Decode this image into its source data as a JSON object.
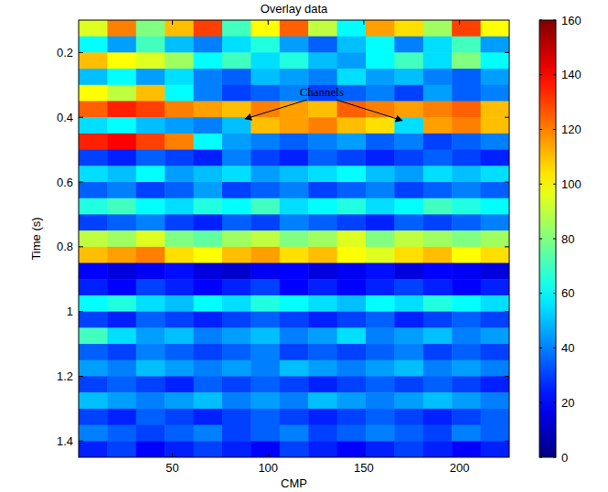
{
  "chart_data": {
    "type": "heatmap",
    "title": "Overlay data",
    "xlabel": "CMP",
    "ylabel": "Time (s)",
    "xlim": [
      1,
      226
    ],
    "ylim": [
      0.1,
      1.45
    ],
    "xticks": [
      50,
      100,
      150,
      200
    ],
    "yticks": [
      0.2,
      0.4,
      0.6,
      0.8,
      1,
      1.2,
      1.4
    ],
    "grid": false,
    "x": [
      1,
      16,
      31,
      46,
      61,
      76,
      91,
      106,
      121,
      136,
      151,
      166,
      181,
      196,
      211,
      226
    ],
    "y": [
      0.1,
      0.15,
      0.2,
      0.25,
      0.3,
      0.35,
      0.4,
      0.45,
      0.5,
      0.55,
      0.6,
      0.65,
      0.7,
      0.75,
      0.8,
      0.85,
      0.9,
      0.95,
      1,
      1.05,
      1.1,
      1.15,
      1.2,
      1.25,
      1.3,
      1.35,
      1.4,
      1.45
    ],
    "values": [
      [
        95,
        120,
        80,
        110,
        130,
        70,
        100,
        125,
        90,
        60,
        115,
        105,
        85,
        130,
        100
      ],
      [
        60,
        45,
        70,
        50,
        40,
        55,
        65,
        45,
        35,
        50,
        60,
        40,
        55,
        70,
        45
      ],
      [
        110,
        100,
        95,
        85,
        60,
        70,
        55,
        65,
        50,
        45,
        60,
        70,
        55,
        80,
        60
      ],
      [
        50,
        60,
        45,
        55,
        40,
        35,
        50,
        45,
        40,
        55,
        45,
        50,
        40,
        35,
        45
      ],
      [
        100,
        90,
        110,
        60,
        40,
        30,
        35,
        40,
        30,
        35,
        40,
        30,
        45,
        35,
        40
      ],
      [
        125,
        135,
        130,
        120,
        115,
        110,
        120,
        115,
        110,
        125,
        120,
        115,
        120,
        125,
        110
      ],
      [
        55,
        60,
        50,
        45,
        40,
        50,
        110,
        115,
        120,
        110,
        105,
        55,
        115,
        120,
        110
      ],
      [
        135,
        140,
        130,
        120,
        60,
        45,
        40,
        35,
        40,
        45,
        35,
        40,
        30,
        35,
        40
      ],
      [
        30,
        25,
        35,
        30,
        25,
        40,
        30,
        25,
        35,
        30,
        25,
        30,
        35,
        30,
        25
      ],
      [
        55,
        50,
        60,
        45,
        50,
        55,
        45,
        50,
        55,
        60,
        50,
        45,
        55,
        50,
        55
      ],
      [
        35,
        40,
        30,
        35,
        45,
        30,
        35,
        40,
        30,
        35,
        40,
        30,
        35,
        40,
        35
      ],
      [
        65,
        70,
        60,
        55,
        65,
        60,
        70,
        55,
        60,
        65,
        55,
        60,
        70,
        65,
        60
      ],
      [
        30,
        35,
        40,
        30,
        25,
        35,
        30,
        40,
        35,
        30,
        25,
        35,
        30,
        35,
        40
      ],
      [
        90,
        85,
        95,
        80,
        75,
        85,
        90,
        80,
        85,
        95,
        80,
        90,
        85,
        80,
        85
      ],
      [
        110,
        115,
        120,
        105,
        100,
        110,
        115,
        105,
        110,
        100,
        95,
        105,
        110,
        100,
        105
      ],
      [
        20,
        15,
        18,
        22,
        15,
        12,
        18,
        20,
        15,
        18,
        22,
        15,
        20,
        18,
        15
      ],
      [
        25,
        20,
        30,
        25,
        20,
        25,
        30,
        20,
        25,
        20,
        25,
        30,
        25,
        20,
        25
      ],
      [
        60,
        65,
        55,
        50,
        60,
        55,
        65,
        60,
        55,
        50,
        60,
        55,
        65,
        60,
        55
      ],
      [
        30,
        25,
        35,
        30,
        25,
        30,
        35,
        30,
        25,
        30,
        35,
        25,
        30,
        35,
        30
      ],
      [
        70,
        55,
        45,
        50,
        40,
        45,
        50,
        40,
        45,
        55,
        40,
        45,
        50,
        40,
        45
      ],
      [
        35,
        30,
        40,
        35,
        30,
        35,
        40,
        30,
        35,
        30,
        35,
        40,
        30,
        35,
        30
      ],
      [
        45,
        40,
        50,
        45,
        40,
        45,
        40,
        50,
        45,
        40,
        45,
        50,
        40,
        45,
        40
      ],
      [
        30,
        35,
        30,
        25,
        35,
        30,
        35,
        30,
        25,
        30,
        35,
        30,
        35,
        30,
        25
      ],
      [
        50,
        45,
        40,
        45,
        50,
        40,
        45,
        40,
        50,
        45,
        40,
        45,
        50,
        45,
        40
      ],
      [
        30,
        25,
        35,
        30,
        25,
        30,
        35,
        30,
        25,
        30,
        35,
        30,
        25,
        30,
        35
      ],
      [
        40,
        35,
        30,
        35,
        40,
        30,
        35,
        40,
        30,
        35,
        40,
        35,
        30,
        40,
        35
      ],
      [
        25,
        30,
        20,
        25,
        30,
        25,
        20,
        30,
        25,
        20,
        25,
        30,
        25,
        20,
        25
      ]
    ],
    "colorbar_lim": [
      0,
      160
    ],
    "colorbar_ticks": [
      0,
      20,
      40,
      60,
      80,
      100,
      120,
      140,
      160
    ],
    "annotations": [
      {
        "text": "Channels",
        "x": 128,
        "y": 0.335,
        "arrows": [
          {
            "x": 88,
            "y": 0.405
          },
          {
            "x": 170,
            "y": 0.41
          }
        ]
      }
    ]
  }
}
